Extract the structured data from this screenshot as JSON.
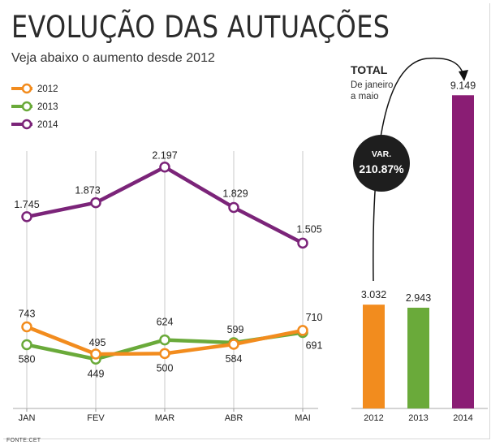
{
  "title": "EVOLUÇÃO DAS AUTUAÇÕES",
  "subtitle": "Veja abaixo o aumento desde 2012",
  "source": "FONTE:CET",
  "chart_data": [
    {
      "type": "line",
      "categories": [
        "JAN",
        "FEV",
        "MAR",
        "ABR",
        "MAI"
      ],
      "legend_position": "top-left",
      "grid": "vertical",
      "ylim": [
        0,
        2400
      ],
      "series": [
        {
          "name": "2012",
          "color": "#f28c1e",
          "values": [
            743,
            495,
            500,
            584,
            710
          ],
          "labels": [
            "743",
            "495",
            "500",
            "584",
            "710"
          ]
        },
        {
          "name": "2013",
          "color": "#6aaa3a",
          "values": [
            580,
            449,
            624,
            599,
            691
          ],
          "labels": [
            "580",
            "449",
            "624",
            "599",
            "691"
          ]
        },
        {
          "name": "2014",
          "color": "#7b2479",
          "values": [
            1745,
            1873,
            2197,
            1829,
            1505
          ],
          "labels": [
            "1.745",
            "1.873",
            "2.197",
            "1.829",
            "1.505"
          ]
        }
      ]
    },
    {
      "type": "bar",
      "title": "TOTAL",
      "subtitle": [
        "De janeiro",
        "a maio"
      ],
      "categories": [
        "2012",
        "2013",
        "2014"
      ],
      "values": [
        3032,
        2943,
        9149
      ],
      "value_labels": [
        "3.032",
        "2.943",
        "9.149"
      ],
      "colors": [
        "#f28c1e",
        "#6aaa3a",
        "#8a1d74"
      ],
      "ylim": [
        0,
        9600
      ],
      "annotation": {
        "label": "VAR.",
        "value": "210.87%"
      }
    }
  ]
}
